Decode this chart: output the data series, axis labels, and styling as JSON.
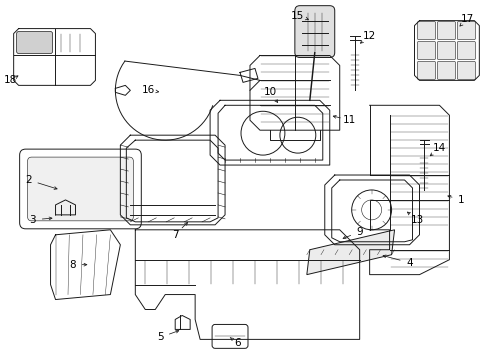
{
  "background_color": "#ffffff",
  "line_color": "#1a1a1a",
  "label_color": "#000000",
  "fig_width": 4.89,
  "fig_height": 3.6,
  "dpi": 100,
  "label_fontsize": 7.5,
  "arrow_lw": 0.55,
  "part_lw": 0.7
}
